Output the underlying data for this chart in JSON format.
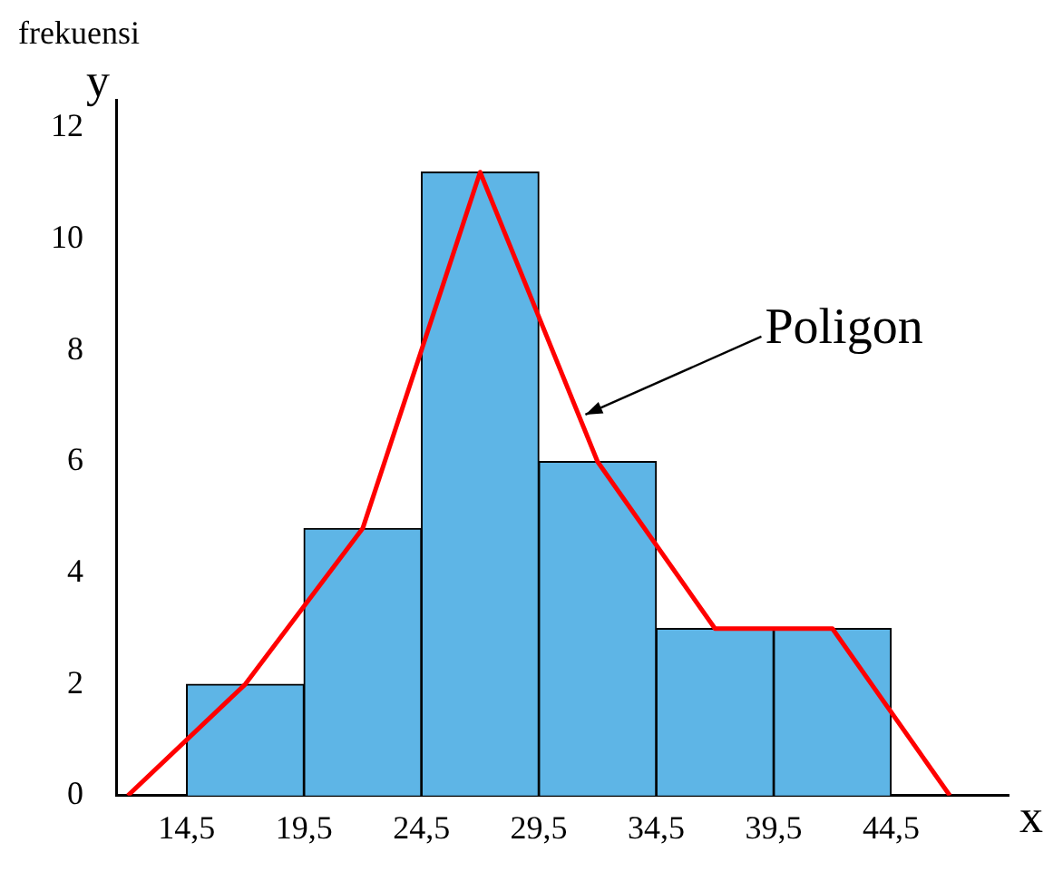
{
  "chart_data": {
    "type": "histogram",
    "xlabel": "x",
    "ylabel": "y",
    "annotations": [
      "frekuensi"
    ],
    "bins": [
      14.5,
      19.5,
      24.5,
      29.5,
      34.5,
      39.5,
      44.5
    ],
    "values": [
      2,
      4.8,
      11.2,
      6,
      3,
      3
    ],
    "color": "#5eb5e6",
    "series": [
      {
        "type": "line",
        "name": "Poligon",
        "color": "#ff0000",
        "x": [
          12,
          17,
          22,
          27,
          32,
          37,
          42,
          47
        ],
        "values": [
          0,
          2,
          4.8,
          11.2,
          6,
          3,
          3,
          0
        ]
      }
    ],
    "xlim": [
      11.5,
      49.5
    ],
    "ylim": [
      0,
      12.5
    ],
    "xticks": [
      {
        "value": 14.5,
        "label": "14,5"
      },
      {
        "value": 19.5,
        "label": "19,5"
      },
      {
        "value": 24.5,
        "label": "24,5"
      },
      {
        "value": 29.5,
        "label": "29,5"
      },
      {
        "value": 34.5,
        "label": "34,5"
      },
      {
        "value": 39.5,
        "label": "39,5"
      },
      {
        "value": 44.5,
        "label": "44,5"
      }
    ],
    "yticks": [
      0,
      2,
      4,
      6,
      8,
      10,
      12
    ],
    "grid": false,
    "legend": false,
    "marker": "none",
    "line_style": "solid"
  }
}
